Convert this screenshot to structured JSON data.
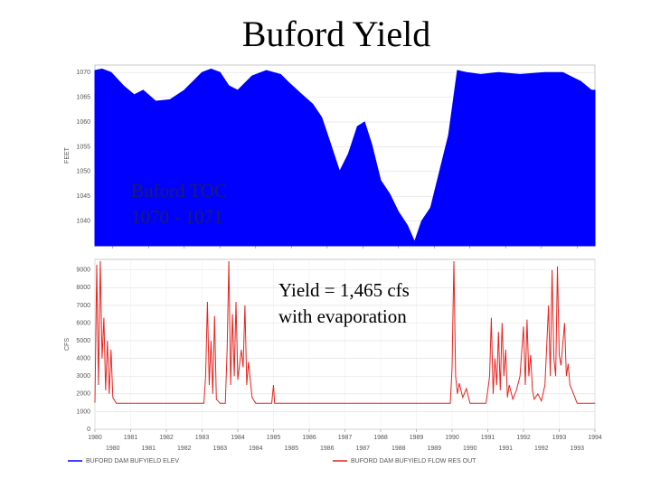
{
  "title": "Buford Yield",
  "chart_data": [
    {
      "type": "area",
      "ylabel": "FEET",
      "annotation": [
        "Buford TOC",
        "1070 - 1071"
      ],
      "xlim": [
        1980,
        1994
      ],
      "xticks": [
        {
          "value": 1980.5,
          "label": "1980"
        },
        {
          "value": 1981.5,
          "label": "1981"
        },
        {
          "value": 1982.5,
          "label": "1982"
        },
        {
          "value": 1983.5,
          "label": "1983"
        },
        {
          "value": 1984.5,
          "label": "1984"
        },
        {
          "value": 1985.5,
          "label": "1985"
        },
        {
          "value": 1986.5,
          "label": "1986"
        },
        {
          "value": 1987.5,
          "label": "1987"
        },
        {
          "value": 1988.5,
          "label": "1988"
        },
        {
          "value": 1989.5,
          "label": "1989"
        },
        {
          "value": 1990.5,
          "label": "1990"
        },
        {
          "value": 1991.5,
          "label": "1991"
        },
        {
          "value": 1992.5,
          "label": "1992"
        },
        {
          "value": 1993.5,
          "label": "1993"
        }
      ],
      "ylim": [
        1035,
        1071.5
      ],
      "yticks": [
        1040,
        1045,
        1050,
        1055,
        1060,
        1065,
        1070
      ],
      "grid": true,
      "x": [
        1980.0,
        1980.2,
        1980.45,
        1980.8,
        1981.1,
        1981.35,
        1981.7,
        1982.1,
        1982.5,
        1982.75,
        1983.0,
        1983.25,
        1983.5,
        1983.75,
        1984.0,
        1984.4,
        1984.8,
        1985.2,
        1985.45,
        1985.8,
        1986.1,
        1986.35,
        1986.6,
        1986.85,
        1987.1,
        1987.35,
        1987.55,
        1987.75,
        1988.0,
        1988.25,
        1988.5,
        1988.75,
        1988.95,
        1989.15,
        1989.4,
        1989.65,
        1989.9,
        1990.15,
        1990.4,
        1990.8,
        1991.3,
        1991.9,
        1992.6,
        1993.1,
        1993.6,
        1993.9,
        1994.0
      ],
      "series": [
        {
          "name": "BUFORD DAM BUFYIELD ELEV",
          "color": "#0000ff",
          "values": [
            1070.4,
            1070.7,
            1070,
            1067.3,
            1065.5,
            1066.4,
            1064.2,
            1064.5,
            1066.4,
            1068.2,
            1070,
            1070.7,
            1070,
            1067.3,
            1066.4,
            1069.3,
            1070.4,
            1069.6,
            1067.8,
            1065.5,
            1063.6,
            1060.9,
            1055.5,
            1050,
            1053.6,
            1059.1,
            1060,
            1055.5,
            1048.2,
            1045.5,
            1041.8,
            1039.1,
            1035.8,
            1040,
            1042.7,
            1050,
            1057.3,
            1070.4,
            1070,
            1069.6,
            1070,
            1069.6,
            1070,
            1070,
            1068.2,
            1066.4,
            1066.4
          ]
        }
      ]
    },
    {
      "type": "line",
      "ylabel": "CFS",
      "annotation": [
        "Yield = 1,465 cfs",
        "with evaporation"
      ],
      "xlim": [
        1980,
        1994
      ],
      "xticks": [
        1980,
        1981,
        1982,
        1983,
        1984,
        1985,
        1986,
        1987,
        1988,
        1989,
        1990,
        1991,
        1992,
        1993,
        1994
      ],
      "ylim": [
        0,
        9600
      ],
      "yticks": [
        0,
        1000,
        2000,
        3000,
        4000,
        5000,
        6000,
        7000,
        8000,
        9000
      ],
      "grid": true,
      "x": [
        1980.0,
        1980.05,
        1980.1,
        1980.15,
        1980.2,
        1980.25,
        1980.3,
        1980.35,
        1980.4,
        1980.45,
        1980.5,
        1980.6,
        1983.05,
        1983.1,
        1983.15,
        1983.2,
        1983.25,
        1983.3,
        1983.35,
        1983.4,
        1983.5,
        1983.65,
        1983.7,
        1983.75,
        1983.8,
        1983.85,
        1983.9,
        1983.95,
        1984.0,
        1984.1,
        1984.15,
        1984.2,
        1984.25,
        1984.3,
        1984.4,
        1984.5,
        1984.95,
        1985.0,
        1985.03,
        1989.95,
        1990.0,
        1990.05,
        1990.1,
        1990.15,
        1990.2,
        1990.3,
        1990.4,
        1990.5,
        1990.95,
        1991.0,
        1991.05,
        1991.1,
        1991.15,
        1991.2,
        1991.25,
        1991.3,
        1991.35,
        1991.4,
        1991.45,
        1991.5,
        1991.55,
        1991.6,
        1991.7,
        1991.8,
        1991.9,
        1992.0,
        1992.05,
        1992.1,
        1992.15,
        1992.2,
        1992.25,
        1992.3,
        1992.4,
        1992.5,
        1992.6,
        1992.7,
        1992.75,
        1992.8,
        1992.85,
        1992.9,
        1992.95,
        1993.0,
        1993.05,
        1993.1,
        1993.15,
        1993.2,
        1993.25,
        1993.3,
        1993.4,
        1993.5,
        1994.0
      ],
      "series": [
        {
          "name": "BUFORD DAM BUFYIELD FLOW RES OUT",
          "color": "#e8231f",
          "values": [
            1500,
            9300,
            2500,
            9500,
            4000,
            6300,
            2200,
            5000,
            2000,
            4500,
            1800,
            1465,
            1465,
            3000,
            7200,
            2500,
            5000,
            2000,
            6400,
            1700,
            1465,
            1465,
            4500,
            9500,
            2500,
            6500,
            3000,
            7200,
            2800,
            4500,
            3500,
            7000,
            2500,
            3800,
            1800,
            1465,
            1465,
            2500,
            1465,
            1465,
            3500,
            9500,
            3000,
            2000,
            2600,
            1800,
            2300,
            1465,
            1465,
            2200,
            3000,
            6300,
            2000,
            4000,
            2500,
            5500,
            2200,
            6000,
            3000,
            4500,
            1800,
            2500,
            1700,
            2200,
            3000,
            5800,
            2500,
            6200,
            3000,
            4200,
            2200,
            1700,
            2000,
            1600,
            2500,
            7000,
            3000,
            9000,
            4000,
            3000,
            9200,
            4200,
            3600,
            4800,
            6000,
            3000,
            3700,
            2500,
            2000,
            1465,
            1465
          ]
        }
      ]
    }
  ]
}
